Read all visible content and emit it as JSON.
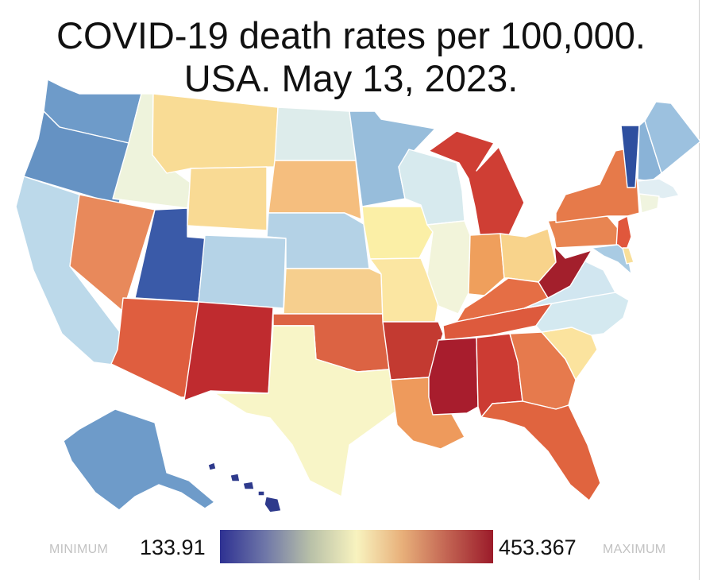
{
  "title": {
    "line1": "COVID-19 death rates per 100,000.",
    "line2": "USA. May 13, 2023."
  },
  "legend": {
    "min_word": "MINIMUM",
    "min_value": "133.91",
    "max_value": "453.367",
    "max_word": "MAXIMUM",
    "colors": [
      "#2e3192",
      "#6f77a8",
      "#b9c1a8",
      "#f8f3bf",
      "#e8b07a",
      "#c26352",
      "#9b1b2a"
    ]
  },
  "regions": [
    {
      "id": "WA",
      "fill": "#6e9bc9"
    },
    {
      "id": "OR",
      "fill": "#6592c3"
    },
    {
      "id": "CA",
      "fill": "#bcd9ea"
    },
    {
      "id": "ID",
      "fill": "#eef3dc"
    },
    {
      "id": "NV",
      "fill": "#e8895b"
    },
    {
      "id": "UT",
      "fill": "#3a5aa8"
    },
    {
      "id": "AZ",
      "fill": "#df5e3f"
    },
    {
      "id": "MT",
      "fill": "#f9dc95"
    },
    {
      "id": "WY",
      "fill": "#f9da94"
    },
    {
      "id": "CO",
      "fill": "#b5d3e7"
    },
    {
      "id": "NM",
      "fill": "#bf2b2f"
    },
    {
      "id": "ND",
      "fill": "#ddeceb"
    },
    {
      "id": "SD",
      "fill": "#f5be7e"
    },
    {
      "id": "NE",
      "fill": "#b4d2e6"
    },
    {
      "id": "KS",
      "fill": "#f6cf8e"
    },
    {
      "id": "OK",
      "fill": "#dc6343"
    },
    {
      "id": "TX",
      "fill": "#f8f5c7"
    },
    {
      "id": "MN",
      "fill": "#97bddb"
    },
    {
      "id": "IA",
      "fill": "#fbefa6"
    },
    {
      "id": "MO",
      "fill": "#fbe6a2"
    },
    {
      "id": "AR",
      "fill": "#c33a31"
    },
    {
      "id": "LA",
      "fill": "#ee9a5c"
    },
    {
      "id": "WI",
      "fill": "#d7eaee"
    },
    {
      "id": "IL",
      "fill": "#f2f4da"
    },
    {
      "id": "MI",
      "fill": "#cf3e34"
    },
    {
      "id": "IN",
      "fill": "#ef9f5c"
    },
    {
      "id": "OH",
      "fill": "#f8d38b"
    },
    {
      "id": "KY",
      "fill": "#e56e45"
    },
    {
      "id": "TN",
      "fill": "#dd5a3d"
    },
    {
      "id": "MS",
      "fill": "#a81d2d"
    },
    {
      "id": "AL",
      "fill": "#cc3b33"
    },
    {
      "id": "GA",
      "fill": "#e67a4d"
    },
    {
      "id": "FL",
      "fill": "#e0643f"
    },
    {
      "id": "SC",
      "fill": "#fbe39e"
    },
    {
      "id": "NC",
      "fill": "#d4e9f0"
    },
    {
      "id": "VA",
      "fill": "#d1e6f0"
    },
    {
      "id": "WV",
      "fill": "#a31f2c"
    },
    {
      "id": "PA",
      "fill": "#e88552"
    },
    {
      "id": "NY",
      "fill": "#e67a4a"
    },
    {
      "id": "VT",
      "fill": "#2e4f9f"
    },
    {
      "id": "NH",
      "fill": "#8ab3d7"
    },
    {
      "id": "ME",
      "fill": "#9cc1df"
    },
    {
      "id": "MA",
      "fill": "#e1eef3"
    },
    {
      "id": "CT",
      "fill": "#f0f4df"
    },
    {
      "id": "NJ",
      "fill": "#e0573c"
    },
    {
      "id": "MD",
      "fill": "#a9cbe3"
    },
    {
      "id": "DE",
      "fill": "#f8df9a"
    },
    {
      "id": "AK",
      "fill": "#6e9bc9"
    },
    {
      "id": "HI",
      "fill": "#2e3a8c"
    }
  ]
}
